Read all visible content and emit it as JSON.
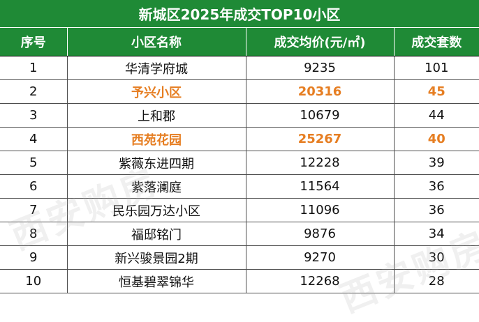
{
  "title": "新城区2025年成交TOP10小区",
  "headers": {
    "rank": "序号",
    "name": "小区名称",
    "price": "成交均价(元/㎡)",
    "count": "成交套数"
  },
  "rows": [
    {
      "rank": "1",
      "name": "华清学府城",
      "price": "9235",
      "count": "101"
    },
    {
      "rank": "2",
      "name": "予兴小区",
      "price": "20316",
      "count": "45"
    },
    {
      "rank": "3",
      "name": "上和郡",
      "price": "10679",
      "count": "44"
    },
    {
      "rank": "4",
      "name": "西苑花园",
      "price": "25267",
      "count": "40"
    },
    {
      "rank": "5",
      "name": "紫薇东进四期",
      "price": "12228",
      "count": "39"
    },
    {
      "rank": "6",
      "name": "紫落澜庭",
      "price": "11564",
      "count": "36"
    },
    {
      "rank": "7",
      "name": "民乐园万达小区",
      "price": "11096",
      "count": "36"
    },
    {
      "rank": "8",
      "name": "福邸铭门",
      "price": "9876",
      "count": "34"
    },
    {
      "rank": "9",
      "name": "新兴骏景园2期",
      "price": "9270",
      "count": "30"
    },
    {
      "rank": "10",
      "name": "恒基碧翠锦华",
      "price": "12268",
      "count": "28"
    }
  ],
  "watermark": "西安购房",
  "colors": {
    "header_bg": "#1f8a36",
    "highlight_text": "#e67e22"
  }
}
